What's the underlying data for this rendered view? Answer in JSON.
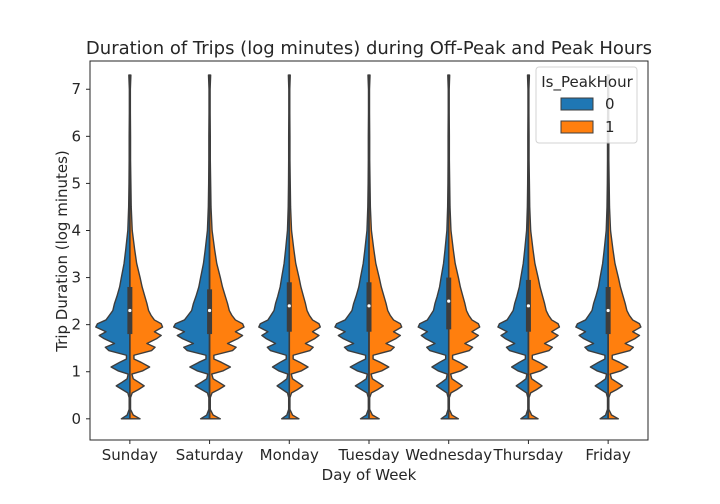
{
  "chart_data": {
    "type": "violin",
    "title": "Duration of Trips (log minutes) during Off-Peak and Peak Hours",
    "xlabel": "Day of Week",
    "ylabel": "Trip Duration (log minutes)",
    "categories": [
      "Sunday",
      "Saturday",
      "Monday",
      "Tuesday",
      "Wednesday",
      "Thursday",
      "Friday"
    ],
    "ylim": [
      -0.45,
      7.6
    ],
    "yticks": [
      0,
      1,
      2,
      3,
      4,
      5,
      6,
      7
    ],
    "split": true,
    "legend": {
      "title": "Is_PeakHour",
      "placement": "top-right",
      "entries": [
        {
          "label": "0",
          "color": "#1f77b4"
        },
        {
          "label": "1",
          "color": "#ff7f0e"
        }
      ]
    },
    "series": [
      {
        "name": "0",
        "color": "#1f77b4"
      },
      {
        "name": "1",
        "color": "#ff7f0e"
      }
    ],
    "summary": [
      {
        "day": "Sunday",
        "median": 2.3,
        "q1": 1.8,
        "q3": 2.8,
        "min": 0,
        "max": 7.3
      },
      {
        "day": "Saturday",
        "median": 2.3,
        "q1": 1.8,
        "q3": 2.75,
        "min": 0,
        "max": 7.3
      },
      {
        "day": "Monday",
        "median": 2.4,
        "q1": 1.85,
        "q3": 2.9,
        "min": 0,
        "max": 7.3
      },
      {
        "day": "Tuesday",
        "median": 2.4,
        "q1": 1.85,
        "q3": 2.9,
        "min": 0,
        "max": 7.3
      },
      {
        "day": "Wednesday",
        "median": 2.5,
        "q1": 1.9,
        "q3": 3.0,
        "min": 0,
        "max": 7.3
      },
      {
        "day": "Thursday",
        "median": 2.4,
        "q1": 1.85,
        "q3": 2.95,
        "min": 0,
        "max": 7.3
      },
      {
        "day": "Friday",
        "median": 2.3,
        "q1": 1.8,
        "q3": 2.8,
        "min": 0,
        "max": 7.3
      }
    ],
    "density_profile": {
      "y": [
        0,
        0.08,
        0.2,
        0.35,
        0.45,
        0.55,
        0.62,
        0.7,
        0.78,
        0.85,
        0.95,
        1.02,
        1.1,
        1.2,
        1.27,
        1.35,
        1.45,
        1.52,
        1.6,
        1.7,
        1.77,
        1.85,
        1.95,
        2.02,
        2.1,
        2.2,
        2.3,
        2.45,
        2.6,
        2.8,
        3.0,
        3.3,
        3.6,
        4.0,
        4.5,
        5.0,
        5.5,
        6.0,
        6.5,
        7.0,
        7.3
      ],
      "offpeak_width": [
        0.25,
        0.08,
        0.02,
        0.02,
        0.02,
        0.06,
        0.22,
        0.4,
        0.22,
        0.08,
        0.05,
        0.35,
        0.55,
        0.3,
        0.1,
        0.1,
        0.62,
        0.72,
        0.45,
        0.75,
        0.9,
        0.7,
        1.0,
        0.95,
        0.7,
        0.6,
        0.5,
        0.45,
        0.38,
        0.3,
        0.25,
        0.17,
        0.12,
        0.06,
        0.035,
        0.025,
        0.02,
        0.02,
        0.015,
        0.015,
        0.03
      ],
      "peak_width": [
        0.3,
        0.1,
        0.02,
        0.02,
        0.02,
        0.07,
        0.25,
        0.42,
        0.25,
        0.1,
        0.06,
        0.38,
        0.58,
        0.33,
        0.12,
        0.12,
        0.64,
        0.74,
        0.5,
        0.78,
        0.92,
        0.72,
        0.96,
        0.92,
        0.72,
        0.62,
        0.55,
        0.5,
        0.44,
        0.36,
        0.3,
        0.2,
        0.14,
        0.07,
        0.04,
        0.03,
        0.02,
        0.02,
        0.015,
        0.015,
        0.03
      ],
      "offpeak_scale_by_day": [
        0.95,
        1.0,
        0.85,
        0.95,
        0.85,
        0.85,
        0.9
      ],
      "peak_scale_by_day": [
        0.95,
        1.0,
        0.9,
        0.95,
        0.9,
        0.9,
        0.95
      ]
    }
  }
}
